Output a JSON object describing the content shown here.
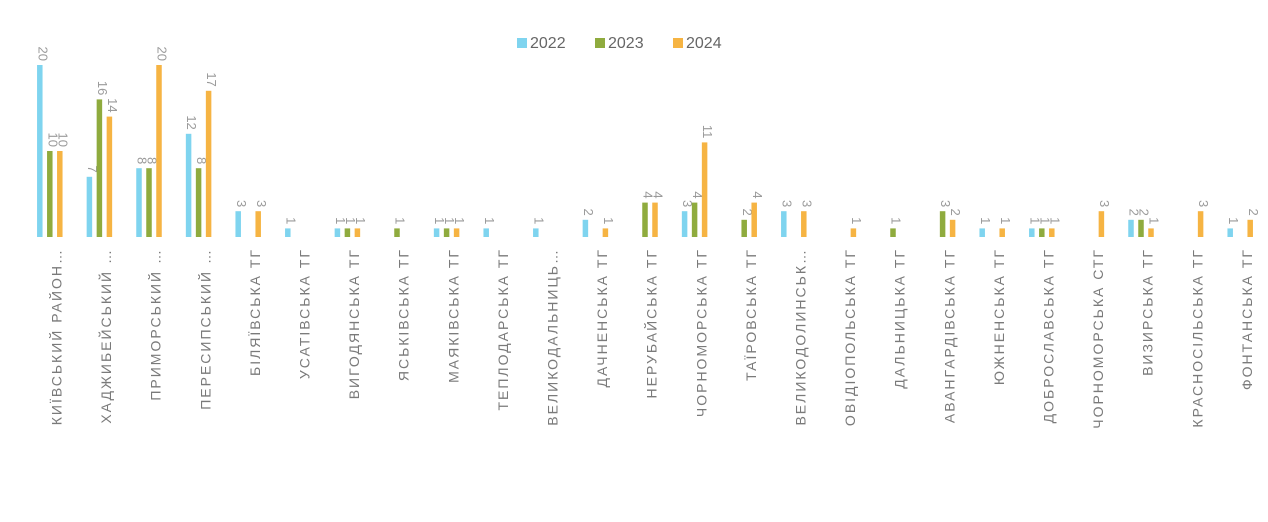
{
  "chart_data": {
    "type": "bar",
    "categories": [
      "КИЇВСЬКИЙ РАЙОН…",
      "ХАДЖИБЕЙСЬКИЙ …",
      "ПРИМОРСЬКИЙ …",
      "ПЕРЕСИПСЬКИЙ …",
      "БІЛЯЇВСЬКА ТГ",
      "УСАТІВСЬКА ТГ",
      "ВИГОДЯНСЬКА ТГ",
      "ЯСЬКІВСЬКА ТГ",
      "МАЯКІВСЬКА ТГ",
      "ТЕПЛОДАРСЬКА ТГ",
      "ВЕЛИКОДАЛЬНИЦЬ…",
      "ДАЧНЕНСЬКА ТГ",
      "НЕРУБАЙСЬКА ТГ",
      "ЧОРНОМОРСЬКА ТГ",
      "ТАЇРОВСЬКА ТГ",
      "ВЕЛИКОДОЛИНСЬК…",
      "ОВІДІОПОЛЬСЬКА ТГ",
      "ДАЛЬНИЦЬКА ТГ",
      "АВАНГАРДІВСЬКА ТГ",
      "ЮЖНЕНСЬКА ТГ",
      "ДОБРОСЛАВСЬКА ТГ",
      "ЧОРНОМОРСЬКА СТГ",
      "ВИЗИРСЬКА ТГ",
      "КРАСНОСІЛЬСЬКА ТГ",
      "ФОНТАНСЬКА ТГ"
    ],
    "series": [
      {
        "name": "2022",
        "color": "#7fd4ef",
        "values": [
          20,
          7,
          8,
          12,
          3,
          1,
          1,
          null,
          1,
          1,
          1,
          2,
          null,
          3,
          null,
          3,
          null,
          null,
          null,
          1,
          1,
          null,
          2,
          null,
          1
        ]
      },
      {
        "name": "2023",
        "color": "#8fab3e",
        "values": [
          10,
          16,
          8,
          8,
          null,
          null,
          1,
          1,
          1,
          null,
          null,
          null,
          4,
          4,
          2,
          null,
          null,
          1,
          3,
          null,
          1,
          null,
          2,
          null,
          null
        ]
      },
      {
        "name": "2024",
        "color": "#f6b443",
        "values": [
          10,
          14,
          20,
          17,
          3,
          null,
          1,
          null,
          1,
          null,
          null,
          1,
          4,
          11,
          4,
          3,
          1,
          null,
          2,
          1,
          1,
          3,
          1,
          3,
          2
        ]
      }
    ],
    "ylim": [
      0,
      20
    ],
    "legend": "top"
  }
}
